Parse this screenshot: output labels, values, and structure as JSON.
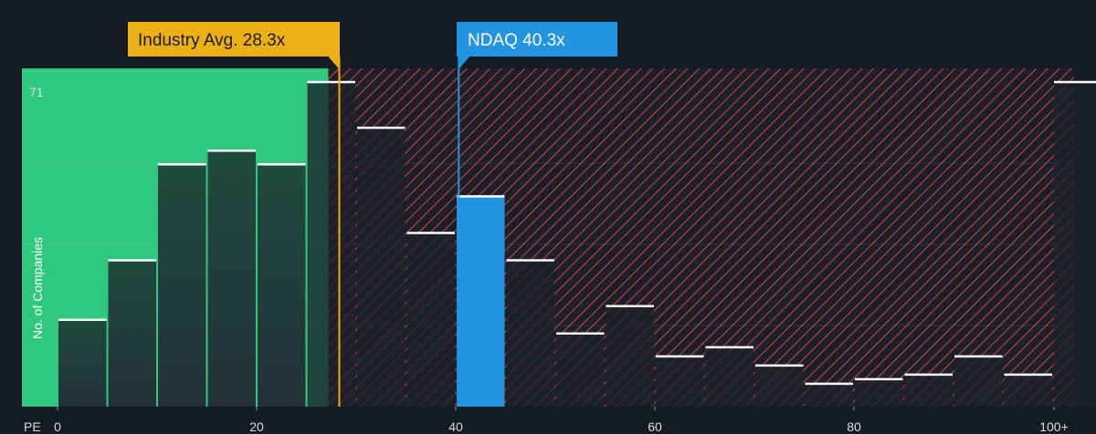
{
  "chart_data": {
    "type": "bar",
    "x_axis_label": "PE",
    "ylabel": "No. of Companies",
    "x_ticks": [
      "0",
      "20",
      "40",
      "60",
      "80",
      "100+"
    ],
    "y_max_label": "71",
    "bin_width": 5,
    "bins": [
      {
        "x": 0,
        "value": 19
      },
      {
        "x": 5,
        "value": 32
      },
      {
        "x": 10,
        "value": 53
      },
      {
        "x": 15,
        "value": 56
      },
      {
        "x": 20,
        "value": 53
      },
      {
        "x": 25,
        "value": 71
      },
      {
        "x": 30,
        "value": 61
      },
      {
        "x": 35,
        "value": 38
      },
      {
        "x": 40,
        "value": 46,
        "highlight": true
      },
      {
        "x": 45,
        "value": 32
      },
      {
        "x": 50,
        "value": 16
      },
      {
        "x": 55,
        "value": 22
      },
      {
        "x": 60,
        "value": 11
      },
      {
        "x": 65,
        "value": 13
      },
      {
        "x": 70,
        "value": 9
      },
      {
        "x": 75,
        "value": 5
      },
      {
        "x": 80,
        "value": 6
      },
      {
        "x": 85,
        "value": 7
      },
      {
        "x": 90,
        "value": 11
      },
      {
        "x": 95,
        "value": 7
      },
      {
        "x": 100,
        "value": 71
      }
    ],
    "industry_avg": {
      "label": "Industry Avg. 28.3x",
      "value": 28.3
    },
    "company": {
      "label": "NDAQ 40.3x",
      "value": 40.3
    },
    "fair_range_max": 27.2,
    "colors": {
      "background": "#151b24",
      "fair_zone": "#2fc87e",
      "bar_dark": "#1f4a3c",
      "hatch": "#d8404c",
      "company_bar": "#2395e0",
      "industry_callout": "#ebaf17",
      "company_callout": "#2395e0"
    }
  }
}
